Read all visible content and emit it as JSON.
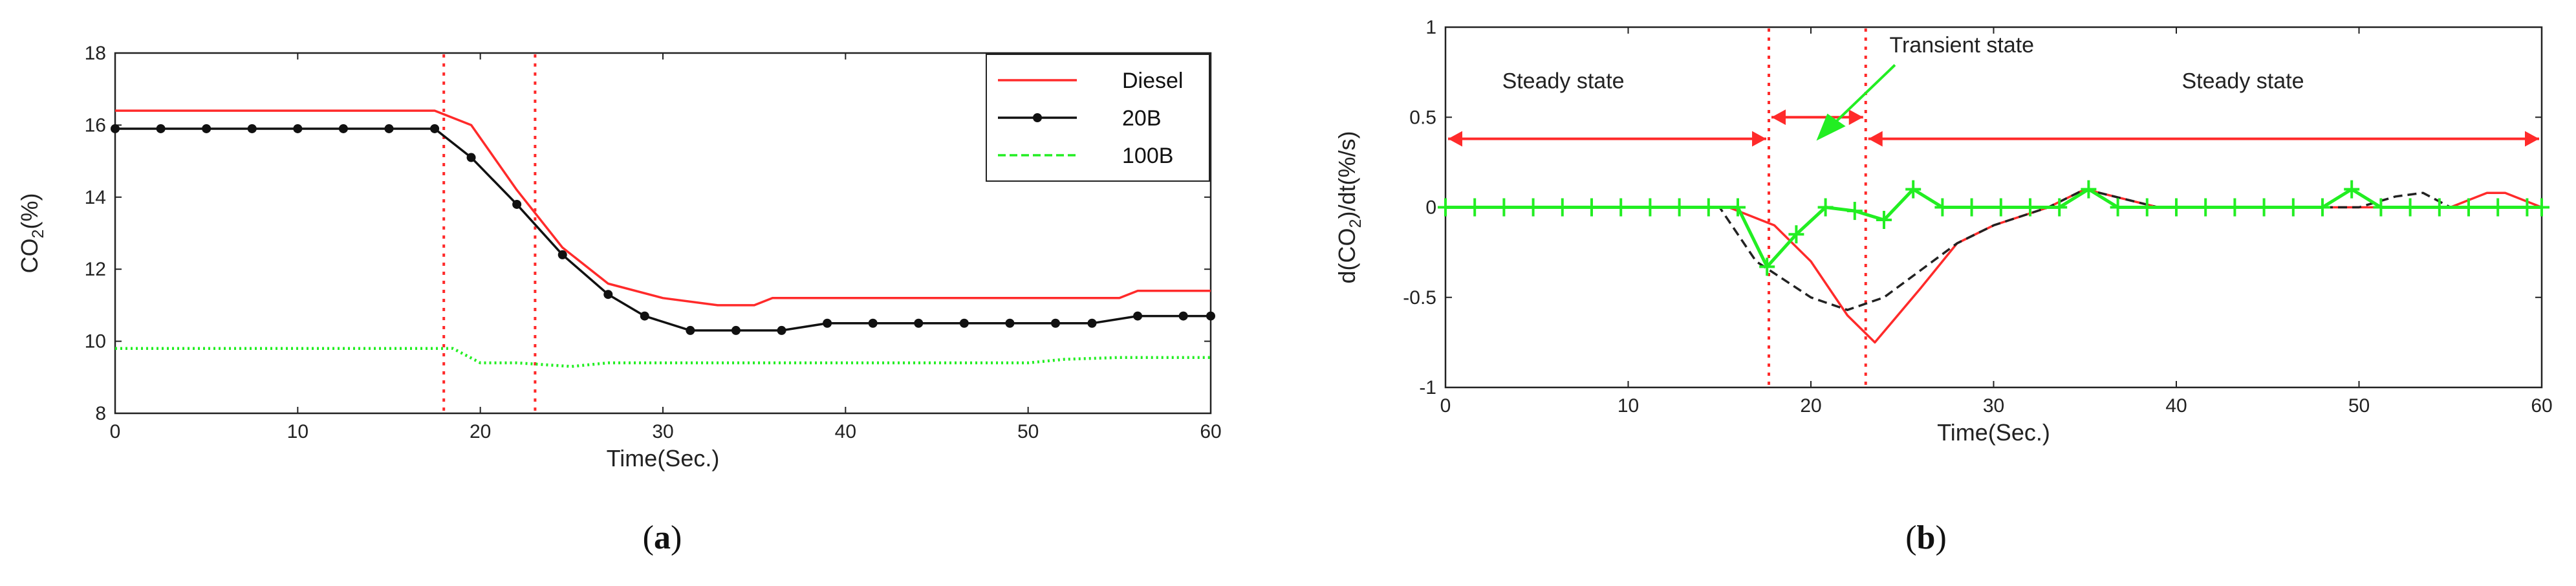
{
  "chart_data": [
    {
      "type": "line",
      "caption_letter": "a",
      "xlabel": "Time(Sec.)",
      "ylabel_prefix": "CO",
      "ylabel_sub": "2",
      "ylabel_suffix": "(%)",
      "xlim": [
        0,
        60
      ],
      "ylim": [
        8,
        18
      ],
      "xticks": [
        0,
        10,
        20,
        30,
        40,
        50,
        60
      ],
      "yticks": [
        8,
        10,
        12,
        14,
        16,
        18
      ],
      "legend_position": "top-right",
      "grid": false,
      "vlines": [
        18,
        23
      ],
      "series": [
        {
          "name": "Diesel",
          "color": "#ff2a2a",
          "style": "solid",
          "x": [
            0,
            17.5,
            19.5,
            22,
            24.5,
            27,
            30,
            33,
            35,
            36,
            40,
            45,
            50,
            55,
            56,
            60
          ],
          "y": [
            16.4,
            16.4,
            16.0,
            14.2,
            12.6,
            11.6,
            11.2,
            11.0,
            11.0,
            11.2,
            11.2,
            11.2,
            11.2,
            11.2,
            11.4,
            11.4
          ]
        },
        {
          "name": "20B",
          "color": "#111111",
          "style": "solid-dots",
          "x": [
            0,
            2.5,
            5,
            7.5,
            10,
            12.5,
            15,
            17.5,
            19.5,
            22,
            24.5,
            27,
            29,
            31.5,
            34,
            36.5,
            39,
            41.5,
            44,
            46.5,
            49,
            51.5,
            53.5,
            56,
            58.5,
            60
          ],
          "y": [
            15.9,
            15.9,
            15.9,
            15.9,
            15.9,
            15.9,
            15.9,
            15.9,
            15.1,
            13.8,
            12.4,
            11.3,
            10.7,
            10.3,
            10.3,
            10.3,
            10.5,
            10.5,
            10.5,
            10.5,
            10.5,
            10.5,
            10.5,
            10.7,
            10.7,
            10.7
          ]
        },
        {
          "name": "100B",
          "color": "#22ee22",
          "style": "dotted",
          "x": [
            0,
            17.5,
            18.5,
            20,
            22,
            25,
            27,
            30,
            35,
            40,
            45,
            50,
            52,
            55,
            60
          ],
          "y": [
            9.8,
            9.8,
            9.8,
            9.4,
            9.4,
            9.3,
            9.4,
            9.4,
            9.4,
            9.4,
            9.4,
            9.4,
            9.5,
            9.55,
            9.55
          ]
        }
      ]
    },
    {
      "type": "line",
      "caption_letter": "b",
      "xlabel": "Time(Sec.)",
      "ylabel_prefix": "d(CO",
      "ylabel_sub": "2",
      "ylabel_suffix": ")/dt(%/s)",
      "xlim": [
        0,
        60
      ],
      "ylim": [
        -1,
        1
      ],
      "xticks": [
        0,
        10,
        20,
        30,
        40,
        50,
        60
      ],
      "yticks": [
        -1,
        -0.5,
        0,
        0.5,
        1
      ],
      "ytick_labels": [
        "-1",
        "-0.5",
        "0",
        "0.5",
        "1"
      ],
      "grid": false,
      "vlines": [
        17.7,
        23
      ],
      "annotations": {
        "steady_left": "Steady state",
        "transient": "Transient state",
        "steady_right": "Steady state"
      },
      "series": [
        {
          "color": "#ff2a2a",
          "style": "solid",
          "x": [
            0,
            15.5,
            18,
            20,
            22,
            23.5,
            26,
            28,
            30,
            33,
            35,
            37,
            39,
            45,
            50,
            53,
            55,
            57,
            58,
            60
          ],
          "y": [
            0,
            0,
            -0.1,
            -0.3,
            -0.6,
            -0.75,
            -0.45,
            -0.2,
            -0.1,
            0,
            0.1,
            0.05,
            0,
            0,
            0,
            0,
            0,
            0.08,
            0.08,
            0
          ]
        },
        {
          "color": "#222222",
          "style": "dashed",
          "x": [
            0,
            15,
            17,
            20,
            22,
            24,
            26,
            28,
            30,
            33,
            35,
            37,
            39,
            45,
            50,
            52,
            53.5,
            55,
            60
          ],
          "y": [
            0,
            0,
            -0.3,
            -0.5,
            -0.57,
            -0.5,
            -0.35,
            -0.2,
            -0.1,
            0,
            0.1,
            0.05,
            0,
            0,
            0,
            0.06,
            0.08,
            0,
            0
          ]
        },
        {
          "color": "#22ee22",
          "style": "solid-plus",
          "x": [
            0,
            1.6,
            3.2,
            4.8,
            6.4,
            8,
            9.6,
            11.2,
            12.8,
            14.4,
            16,
            17.6,
            19.2,
            20.8,
            22.4,
            24,
            25.6,
            27.2,
            28.8,
            30.4,
            32,
            33.6,
            35.2,
            36.8,
            38.4,
            40,
            41.6,
            43.2,
            44.8,
            46.4,
            48,
            49.6,
            51.2,
            52.8,
            54.4,
            56,
            57.6,
            59.2,
            60
          ],
          "y": [
            0,
            0,
            0,
            0,
            0,
            0,
            0,
            0,
            0,
            0,
            0,
            -0.33,
            -0.15,
            0,
            -0.02,
            -0.07,
            0.1,
            0,
            0,
            0,
            0,
            0,
            0.1,
            0,
            0,
            0,
            0,
            0,
            0,
            0,
            0,
            0.1,
            0,
            0,
            0,
            0,
            0,
            0,
            0
          ]
        }
      ]
    }
  ]
}
